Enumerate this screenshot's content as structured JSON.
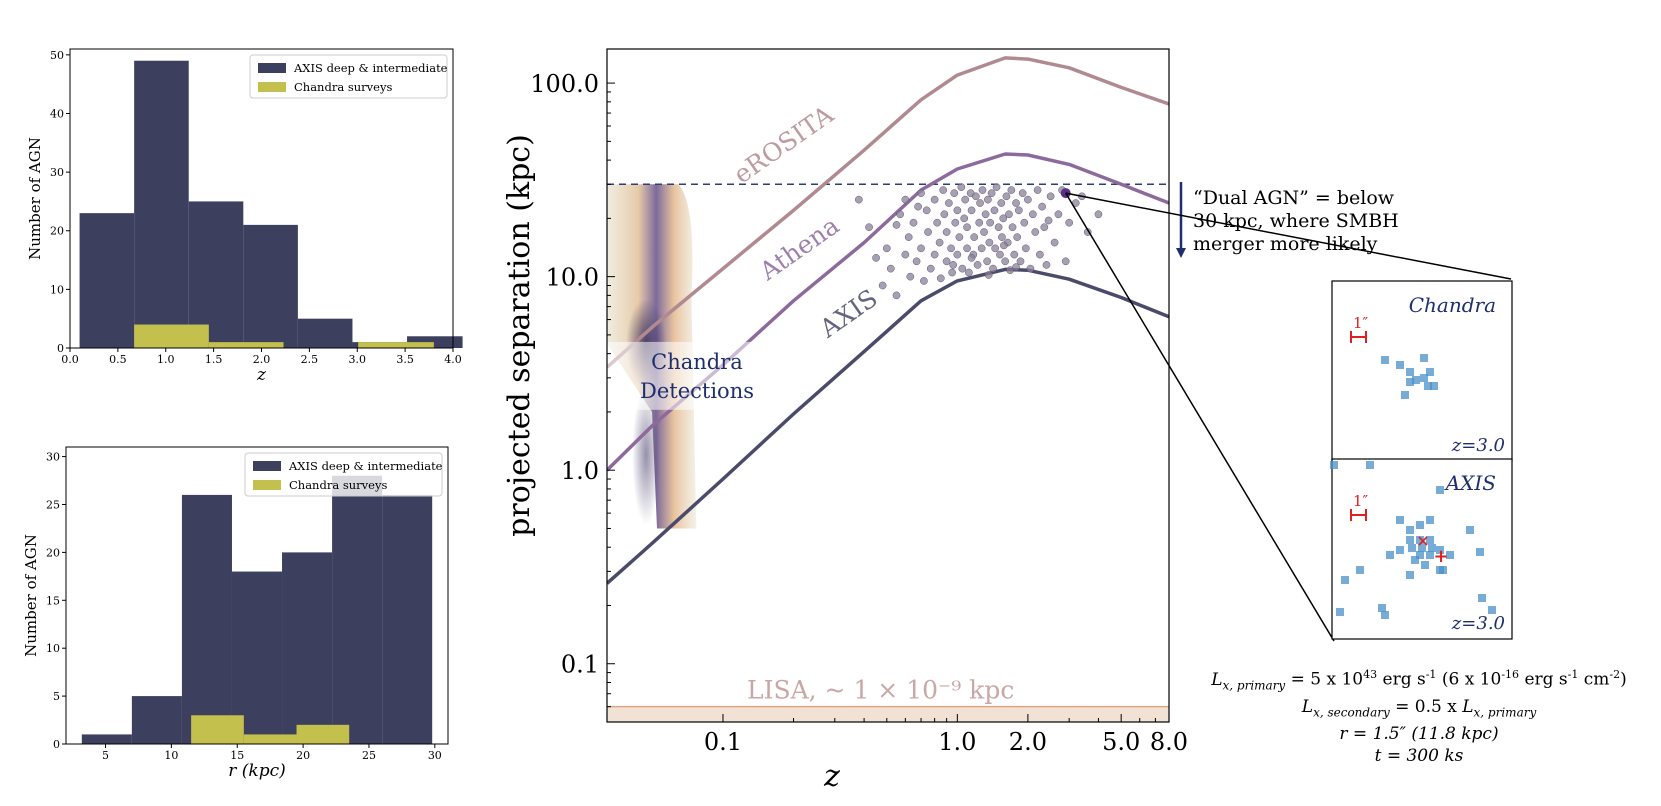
{
  "colors": {
    "navy": "#3c3f5e",
    "olive": "#c4c04d",
    "erosita": "#b08a90",
    "athena": "#8c6a9c",
    "axis_curve": "#4a4a6a",
    "dual_line": "#2b3f7a",
    "points": "#8a7f98",
    "lisa_text": "#c9a7a7",
    "lisa_band": "#f2e2d6",
    "lisa_line": "#d9a98a",
    "title_blue": "#1f2f6e",
    "pixel_blue": "#4a90c8",
    "marker_red": "#e02020"
  },
  "chart_data": [
    {
      "type": "bar",
      "xlabel": "z",
      "ylabel": "Number of AGN",
      "xlim": [
        0.0,
        4.0
      ],
      "ylim": [
        0,
        51
      ],
      "xticks": [
        "0.0",
        "0.5",
        "1.0",
        "1.5",
        "2.0",
        "2.5",
        "3.0",
        "3.5",
        "4.0"
      ],
      "yticks": [
        "0",
        "10",
        "20",
        "30",
        "40",
        "50"
      ],
      "legend": "top-right",
      "series": [
        {
          "name": "AXIS deep & intermediate",
          "color": "#3c3f5e",
          "bins": [
            [
              0.1,
              0.67,
              23
            ],
            [
              0.67,
              1.24,
              49
            ],
            [
              1.24,
              1.81,
              25
            ],
            [
              1.81,
              2.38,
              21
            ],
            [
              2.38,
              2.95,
              5
            ],
            [
              2.95,
              3.52,
              1
            ],
            [
              3.52,
              4.1,
              2
            ]
          ]
        },
        {
          "name": "Chandra surveys",
          "color": "#c4c04d",
          "bins": [
            [
              0.67,
              1.45,
              4
            ],
            [
              1.45,
              2.23,
              1
            ],
            [
              2.23,
              3.01,
              0
            ],
            [
              3.01,
              3.8,
              1
            ]
          ]
        }
      ]
    },
    {
      "type": "bar",
      "xlabel": "r (kpc)",
      "ylabel": "Number of AGN",
      "xlim": [
        2,
        31
      ],
      "ylim": [
        0,
        31
      ],
      "xticks": [
        "5",
        "10",
        "15",
        "20",
        "25",
        "30"
      ],
      "yticks": [
        "0",
        "5",
        "10",
        "15",
        "20",
        "25",
        "30"
      ],
      "legend": "top-right",
      "series": [
        {
          "name": "AXIS deep & intermediate",
          "color": "#3c3f5e",
          "bins": [
            [
              3.2,
              7.0,
              1
            ],
            [
              7.0,
              10.8,
              5
            ],
            [
              10.8,
              14.6,
              26
            ],
            [
              14.6,
              18.4,
              18
            ],
            [
              18.4,
              22.2,
              20
            ],
            [
              22.2,
              26.0,
              28
            ],
            [
              26.0,
              29.8,
              26
            ]
          ]
        },
        {
          "name": "Chandra surveys",
          "color": "#c4c04d",
          "bins": [
            [
              11.5,
              15.5,
              3
            ],
            [
              15.5,
              19.5,
              1
            ],
            [
              19.5,
              23.5,
              2
            ]
          ]
        }
      ]
    },
    {
      "type": "line",
      "xlabel": "z",
      "ylabel": "projected separation (kpc)",
      "x_scale": "log",
      "y_scale": "log",
      "xlim": [
        0.032,
        8.0
      ],
      "ylim": [
        0.05,
        150
      ],
      "xticks": [
        {
          "v": 0.1,
          "label": "0.1"
        },
        {
          "v": 1.0,
          "label": "1.0"
        },
        {
          "v": 2.0,
          "label": "2.0"
        },
        {
          "v": 5.0,
          "label": "5.0"
        },
        {
          "v": 8.0,
          "label": "8.0"
        }
      ],
      "yticks": [
        {
          "v": 0.1,
          "label": "0.1"
        },
        {
          "v": 1.0,
          "label": "1.0"
        },
        {
          "v": 10.0,
          "label": "10.0"
        },
        {
          "v": 100.0,
          "label": "100.0"
        }
      ],
      "series": [
        {
          "name": "eROSITA",
          "color": "#b08a90",
          "points": [
            [
              0.032,
              3.4
            ],
            [
              0.05,
              5.5
            ],
            [
              0.1,
              11
            ],
            [
              0.2,
              22
            ],
            [
              0.4,
              45
            ],
            [
              0.7,
              82
            ],
            [
              1.0,
              110
            ],
            [
              1.6,
              135
            ],
            [
              2.0,
              133
            ],
            [
              3.0,
              120
            ],
            [
              5.0,
              95
            ],
            [
              8.0,
              78
            ]
          ]
        },
        {
          "name": "Athena",
          "color": "#8c6a9c",
          "points": [
            [
              0.032,
              1.0
            ],
            [
              0.05,
              1.7
            ],
            [
              0.1,
              3.5
            ],
            [
              0.2,
              7.5
            ],
            [
              0.4,
              15
            ],
            [
              0.7,
              28
            ],
            [
              1.0,
              36
            ],
            [
              1.6,
              43
            ],
            [
              2.0,
              42.5
            ],
            [
              3.0,
              38
            ],
            [
              5.0,
              30
            ],
            [
              8.0,
              24
            ]
          ]
        },
        {
          "name": "AXIS",
          "color": "#4a4a6a",
          "points": [
            [
              0.032,
              0.26
            ],
            [
              0.05,
              0.42
            ],
            [
              0.1,
              0.9
            ],
            [
              0.2,
              1.95
            ],
            [
              0.4,
              4.1
            ],
            [
              0.7,
              7.5
            ],
            [
              1.0,
              9.5
            ],
            [
              1.6,
              10.9
            ],
            [
              2.0,
              10.8
            ],
            [
              3.0,
              9.7
            ],
            [
              5.0,
              7.8
            ],
            [
              8.0,
              6.2
            ]
          ]
        }
      ],
      "scatter": [
        [
          0.42,
          18
        ],
        [
          0.45,
          12.5
        ],
        [
          0.48,
          9
        ],
        [
          0.5,
          14
        ],
        [
          0.52,
          11
        ],
        [
          0.55,
          8
        ],
        [
          0.57,
          21
        ],
        [
          0.6,
          13
        ],
        [
          0.6,
          25
        ],
        [
          0.62,
          16
        ],
        [
          0.63,
          10
        ],
        [
          0.65,
          19
        ],
        [
          0.67,
          12
        ],
        [
          0.7,
          27
        ],
        [
          0.7,
          14
        ],
        [
          0.72,
          9.5
        ],
        [
          0.74,
          22
        ],
        [
          0.75,
          17
        ],
        [
          0.77,
          11
        ],
        [
          0.8,
          25
        ],
        [
          0.8,
          13
        ],
        [
          0.82,
          19
        ],
        [
          0.84,
          15
        ],
        [
          0.85,
          9.8
        ],
        [
          0.87,
          28
        ],
        [
          0.88,
          21
        ],
        [
          0.9,
          12
        ],
        [
          0.9,
          17
        ],
        [
          0.92,
          24
        ],
        [
          0.94,
          14
        ],
        [
          0.95,
          10.5
        ],
        [
          0.97,
          27
        ],
        [
          0.98,
          19
        ],
        [
          1.0,
          13
        ],
        [
          1.0,
          22
        ],
        [
          1.02,
          16
        ],
        [
          1.04,
          29
        ],
        [
          1.05,
          11
        ],
        [
          1.07,
          20
        ],
        [
          1.08,
          25
        ],
        [
          1.1,
          14
        ],
        [
          1.1,
          18
        ],
        [
          1.12,
          10.5
        ],
        [
          1.14,
          27
        ],
        [
          1.15,
          22
        ],
        [
          1.17,
          13
        ],
        [
          1.18,
          16
        ],
        [
          1.2,
          26
        ],
        [
          1.22,
          11.5
        ],
        [
          1.24,
          19
        ],
        [
          1.25,
          24
        ],
        [
          1.27,
          14
        ],
        [
          1.28,
          28
        ],
        [
          1.3,
          17
        ],
        [
          1.32,
          21
        ],
        [
          1.34,
          12
        ],
        [
          1.35,
          25
        ],
        [
          1.37,
          15
        ],
        [
          1.38,
          19
        ],
        [
          1.4,
          27
        ],
        [
          1.42,
          11
        ],
        [
          1.44,
          22
        ],
        [
          1.45,
          14
        ],
        [
          1.47,
          29
        ],
        [
          1.5,
          18
        ],
        [
          1.52,
          13
        ],
        [
          1.54,
          24
        ],
        [
          1.55,
          16
        ],
        [
          1.57,
          20
        ],
        [
          1.6,
          12
        ],
        [
          1.62,
          26
        ],
        [
          1.64,
          15
        ],
        [
          1.66,
          21
        ],
        [
          1.68,
          10.8
        ],
        [
          1.7,
          28
        ],
        [
          1.72,
          18
        ],
        [
          1.75,
          13
        ],
        [
          1.78,
          24
        ],
        [
          1.8,
          16
        ],
        [
          1.83,
          22
        ],
        [
          1.86,
          12
        ],
        [
          1.9,
          27
        ],
        [
          1.93,
          19
        ],
        [
          1.96,
          14
        ],
        [
          2.0,
          25
        ],
        [
          2.05,
          11
        ],
        [
          2.1,
          21
        ],
        [
          2.15,
          17
        ],
        [
          2.2,
          28
        ],
        [
          2.25,
          13
        ],
        [
          2.3,
          23
        ],
        [
          2.35,
          18
        ],
        [
          2.4,
          11.5
        ],
        [
          2.5,
          26
        ],
        [
          2.6,
          15
        ],
        [
          2.7,
          21
        ],
        [
          2.8,
          28
        ],
        [
          2.9,
          12
        ],
        [
          3.0,
          19
        ],
        [
          3.2,
          24
        ],
        [
          3.4,
          26
        ],
        [
          3.6,
          17
        ],
        [
          4.0,
          21
        ],
        [
          0.38,
          25
        ],
        [
          0.55,
          18.5
        ],
        [
          0.68,
          23
        ],
        [
          0.96,
          11.5
        ],
        [
          1.15,
          12.5
        ],
        [
          1.36,
          10.2
        ],
        [
          1.58,
          14.5
        ],
        [
          1.78,
          11.2
        ],
        [
          2.45,
          19.5
        ]
      ],
      "highlight_point": [
        2.9,
        27
      ],
      "dual_agn_threshold": 30,
      "lisa_value": "LISA, ~ 1 × 10⁻⁹ kpc",
      "shaded_label_lines": [
        "Chandra",
        "Detections"
      ]
    }
  ],
  "annotations": {
    "dual_agn_text": [
      "“Dual AGN” = below",
      "30 kpc, where SMBH",
      "merger more likely"
    ],
    "panel_chandra_title": "Chandra",
    "panel_axis_title": "AXIS",
    "panel_z": "z=3.0",
    "scale_bar": "1″",
    "params": {
      "line1": "L",
      "line1_sub": "x, primary",
      "line1_rest_a": " = 5 x 10",
      "line1_exp1": "43",
      "line1_rest_b": " erg s",
      "line1_exp2": "-1",
      "line1_rest_c": " (6 x 10",
      "line1_exp3": "-16",
      "line1_rest_d": " erg s",
      "line1_exp4": "-1",
      "line1_rest_e": " cm",
      "line1_exp5": "-2",
      "line1_rest_f": ")",
      "line2_a": "L",
      "line2_sub": "x, secondary",
      "line2_b": " = 0.5 x ",
      "line2_c": "L",
      "line2_sub2": "x, primary",
      "line3": "r = 1.5″ (11.8 kpc)",
      "line4": "t = 300 ks"
    }
  }
}
